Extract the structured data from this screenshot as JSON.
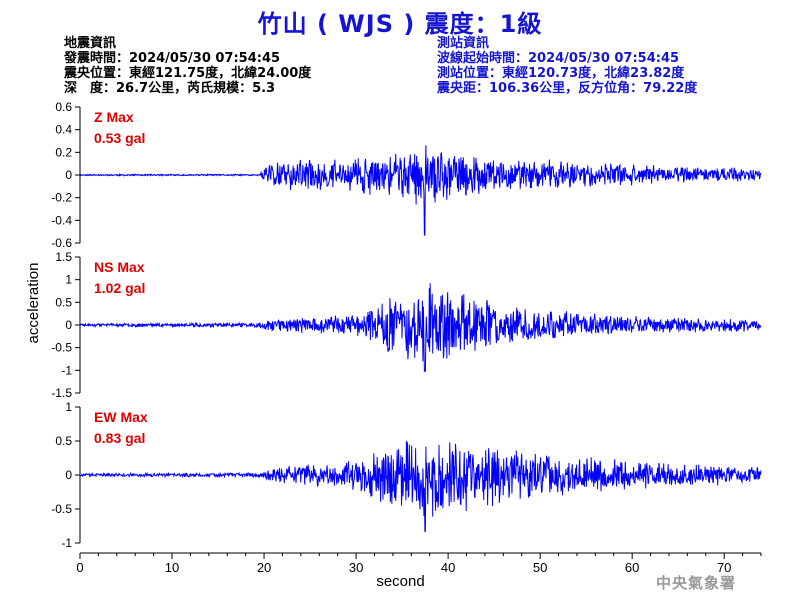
{
  "header": {
    "title": "竹山 ( WJS ) 震度：1級"
  },
  "quake_info": {
    "heading": "地震資訊",
    "origin_time": "發震時間：2024/05/30 07:54:45",
    "epicenter": "震央位置：東經121.75度，北緯24.00度",
    "depth_magnitude": "深　度：26.7公里，芮氏規模：5.3"
  },
  "station_info": {
    "heading": "測站資訊",
    "wave_start": "波線起始時間：2024/05/30 07:54:45",
    "station_location": "測站位置：東經120.73度，北緯23.82度",
    "distance_azimuth": "震央距：106.36公里，反方位角：79.22度"
  },
  "footer": {
    "agency": "中央氣象署"
  },
  "chart_data": {
    "type": "line",
    "xlabel": "second",
    "ylabel": "acceleration",
    "xlim": [
      0,
      74
    ],
    "x_ticks": [
      0,
      10,
      20,
      30,
      40,
      50,
      60,
      70
    ],
    "series_color": "#0000ff",
    "label_color": "#e00000",
    "panels": [
      {
        "component": "Z",
        "max_label": "Z Max",
        "max_value_label": "0.53 gal",
        "max_value": 0.53,
        "ylim": [
          -0.6,
          0.6
        ],
        "y_ticks": [
          0.6,
          0.4,
          0.2,
          0,
          -0.2,
          -0.4,
          -0.6
        ],
        "y_tick_labels": [
          "0.6",
          "0.4",
          "0.2",
          "0",
          "-0.2",
          "-0.4",
          "-0.6"
        ],
        "envelope": [
          [
            0,
            0.01
          ],
          [
            19.5,
            0.01
          ],
          [
            20,
            0.18
          ],
          [
            22,
            0.2
          ],
          [
            30,
            0.22
          ],
          [
            34,
            0.3
          ],
          [
            37,
            0.4
          ],
          [
            40,
            0.35
          ],
          [
            44,
            0.25
          ],
          [
            50,
            0.2
          ],
          [
            60,
            0.14
          ],
          [
            74,
            0.08
          ]
        ],
        "seed": 11
      },
      {
        "component": "NS",
        "max_label": "NS Max",
        "max_value_label": "1.02 gal",
        "max_value": 1.02,
        "ylim": [
          -1.5,
          1.5
        ],
        "y_ticks": [
          1.5,
          1,
          0.5,
          0,
          -0.5,
          -1,
          -1.5
        ],
        "y_tick_labels": [
          "1.5",
          "1",
          "0.5",
          "0",
          "-0.5",
          "-1",
          "-1.5"
        ],
        "envelope": [
          [
            0,
            0.02
          ],
          [
            19,
            0.03
          ],
          [
            21,
            0.08
          ],
          [
            30,
            0.15
          ],
          [
            34,
            0.4
          ],
          [
            38,
            0.55
          ],
          [
            41,
            0.45
          ],
          [
            45,
            0.3
          ],
          [
            50,
            0.2
          ],
          [
            60,
            0.12
          ],
          [
            74,
            0.08
          ]
        ],
        "seed": 23
      },
      {
        "component": "EW",
        "max_label": "EW Max",
        "max_value_label": "0.83 gal",
        "max_value": 0.83,
        "ylim": [
          -1,
          1
        ],
        "y_ticks": [
          1,
          0.5,
          0,
          -0.5,
          -1
        ],
        "y_tick_labels": [
          "1",
          "0.5",
          "0",
          "-0.5",
          "-1"
        ],
        "envelope": [
          [
            0,
            0.02
          ],
          [
            19.5,
            0.03
          ],
          [
            21,
            0.1
          ],
          [
            30,
            0.22
          ],
          [
            35,
            0.45
          ],
          [
            38,
            0.6
          ],
          [
            41,
            0.5
          ],
          [
            46,
            0.4
          ],
          [
            50,
            0.3
          ],
          [
            60,
            0.18
          ],
          [
            74,
            0.12
          ]
        ],
        "seed": 37
      }
    ]
  }
}
